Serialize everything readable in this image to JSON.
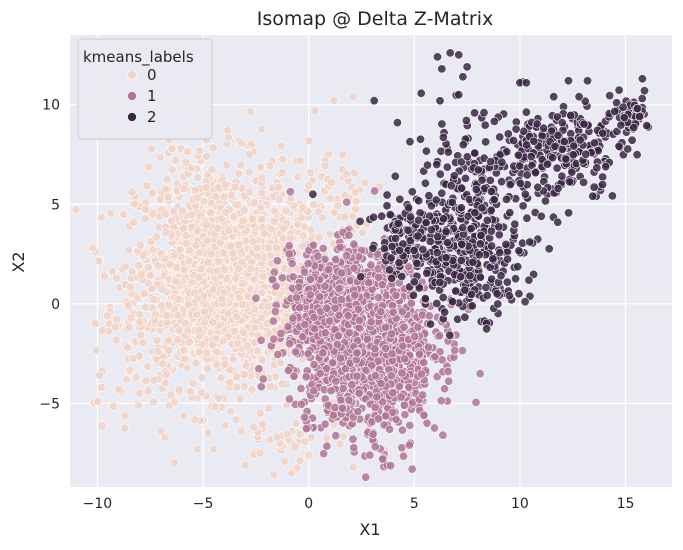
{
  "chart_data": {
    "type": "scatter",
    "title": "Isomap @ Delta Z-Matrix",
    "xlabel": "X1",
    "ylabel": "X2",
    "xlim": [
      -11.3,
      17.2
    ],
    "ylim": [
      -9.2,
      13.5
    ],
    "x_ticks": [
      -10,
      -5,
      0,
      5,
      10,
      15
    ],
    "y_ticks": [
      -5,
      0,
      5,
      10
    ],
    "x_tick_labels": [
      "−10",
      "−5",
      "0",
      "5",
      "10",
      "15"
    ],
    "y_tick_labels": [
      "−5",
      "0",
      "5",
      "10"
    ],
    "grid": true,
    "legend": {
      "title": "kmeans_labels",
      "placement": "top-left",
      "entries": [
        "0",
        "1",
        "2"
      ]
    },
    "colors": {
      "background": "#eaeaf2",
      "grid": "#ffffff",
      "0": "#f0d3c8",
      "1": "#b07596",
      "2": "#3b2745"
    },
    "series": [
      {
        "name": "0",
        "clusters": [
          {
            "cx": -4.4,
            "cy": 1.5,
            "sx": 1.9,
            "sy": 2.8,
            "n": 1400
          },
          {
            "cx": -1.2,
            "cy": 0.6,
            "sx": 1.2,
            "sy": 2.0,
            "n": 300
          },
          {
            "cx": 0.8,
            "cy": 5.5,
            "sx": 1.5,
            "sy": 1.6,
            "n": 60
          },
          {
            "cx": -7.0,
            "cy": -1.5,
            "sx": 1.7,
            "sy": 2.2,
            "n": 90
          },
          {
            "cx": -0.5,
            "cy": -6.5,
            "sx": 1.5,
            "sy": 1.0,
            "n": 40
          }
        ],
        "points": [
          [
            -10.0,
            -4.9
          ],
          [
            -9.9,
            -3.6
          ],
          [
            -10.1,
            -1.0
          ],
          [
            -9.8,
            -4.2
          ],
          [
            -8.0,
            -4.5
          ],
          [
            -9.0,
            -4.3
          ],
          [
            -7.6,
            -4.4
          ],
          [
            -8.5,
            3.9
          ],
          [
            -8.3,
            4.1
          ],
          [
            -6.3,
            7.2
          ],
          [
            -5.8,
            7.1
          ],
          [
            1.2,
            10.2
          ],
          [
            2.1,
            10.4
          ],
          [
            0.3,
            9.7
          ],
          [
            -2.3,
            -7.5
          ],
          [
            -4.5,
            -7.3
          ],
          [
            -3.2,
            -6.4
          ],
          [
            -1.5,
            -6.7
          ],
          [
            -3.0,
            -8.1
          ],
          [
            -0.8,
            -8.5
          ],
          [
            0.0,
            -7.6
          ],
          [
            -0.6,
            -6.0
          ],
          [
            -2.6,
            -6.2
          ],
          [
            1.6,
            7.5
          ],
          [
            2.2,
            5.6
          ]
        ]
      },
      {
        "name": "1",
        "clusters": [
          {
            "cx": 2.5,
            "cy": -1.5,
            "sx": 1.7,
            "sy": 2.0,
            "n": 1200
          },
          {
            "cx": 1.0,
            "cy": 0.4,
            "sx": 1.1,
            "sy": 1.1,
            "n": 250
          },
          {
            "cx": 3.2,
            "cy": -4.5,
            "sx": 1.2,
            "sy": 1.5,
            "n": 200
          }
        ],
        "points": [
          [
            3.5,
            -7.8
          ],
          [
            4.9,
            -8.3
          ],
          [
            2.9,
            -7.6
          ],
          [
            2.1,
            -6.8
          ],
          [
            6.2,
            -1.6
          ],
          [
            6.3,
            -0.9
          ],
          [
            6.1,
            1.1
          ],
          [
            6.6,
            -3.4
          ],
          [
            -0.2,
            -5.7
          ],
          [
            5.6,
            -6.0
          ]
        ]
      },
      {
        "name": "2",
        "clusters": [
          {
            "cx": 7.5,
            "cy": 2.5,
            "sx": 1.3,
            "sy": 1.5,
            "n": 330
          },
          {
            "cx": 12.0,
            "cy": 7.8,
            "sx": 1.5,
            "sy": 1.1,
            "n": 220
          },
          {
            "cx": 8.0,
            "cy": 6.0,
            "sx": 1.8,
            "sy": 1.6,
            "n": 170
          },
          {
            "cx": 4.6,
            "cy": 3.3,
            "sx": 0.9,
            "sy": 1.1,
            "n": 100
          },
          {
            "cx": 15.2,
            "cy": 9.6,
            "sx": 0.45,
            "sy": 0.4,
            "n": 60
          }
        ],
        "points": [
          [
            6.1,
            12.4
          ],
          [
            6.7,
            12.6
          ],
          [
            7.1,
            12.5
          ],
          [
            6.3,
            11.8
          ],
          [
            7.5,
            11.9
          ],
          [
            7.3,
            11.4
          ],
          [
            10.0,
            11.1
          ],
          [
            10.3,
            11.1
          ],
          [
            12.3,
            11.2
          ],
          [
            13.2,
            11.2
          ],
          [
            15.8,
            11.3
          ],
          [
            15.9,
            10.7
          ],
          [
            12.8,
            10.4
          ],
          [
            11.6,
            10.4
          ],
          [
            7.1,
            10.5
          ],
          [
            3.1,
            10.2
          ],
          [
            4.2,
            9.1
          ],
          [
            9.6,
            0.2
          ],
          [
            9.5,
            0.4
          ],
          [
            5.0,
            1.1
          ],
          [
            3.9,
            2.3
          ],
          [
            0.2,
            5.5
          ],
          [
            9.7,
            8.2
          ],
          [
            8.3,
            9.6
          ]
        ]
      }
    ]
  }
}
